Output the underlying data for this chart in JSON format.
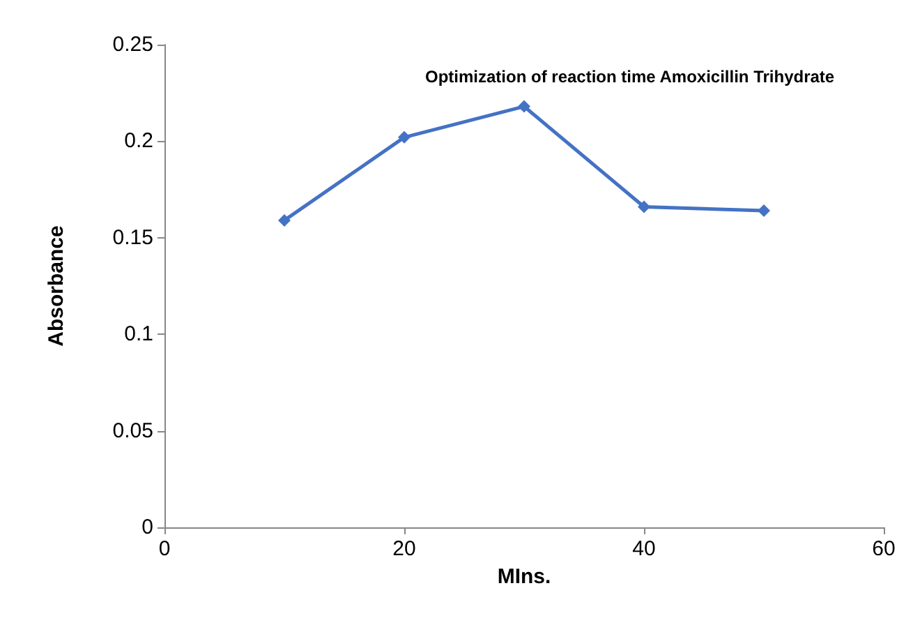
{
  "chart_data": {
    "type": "line",
    "title": "Optimization of reaction time Amoxicillin Trihydrate",
    "xlabel": "MIns.",
    "ylabel": "Absorbance",
    "x": [
      10,
      20,
      30,
      40,
      50
    ],
    "series": [
      {
        "color": "#4472c4",
        "values": [
          0.159,
          0.202,
          0.218,
          0.166,
          0.164
        ]
      }
    ],
    "xlim": [
      0,
      60
    ],
    "xticks": [
      0,
      20,
      40,
      60
    ],
    "ylim": [
      0,
      0.25
    ],
    "yticks": [
      0,
      0.05,
      0.1,
      0.15,
      0.2,
      0.25
    ],
    "grid": false,
    "marker": "diamond",
    "line_style": "solid"
  }
}
